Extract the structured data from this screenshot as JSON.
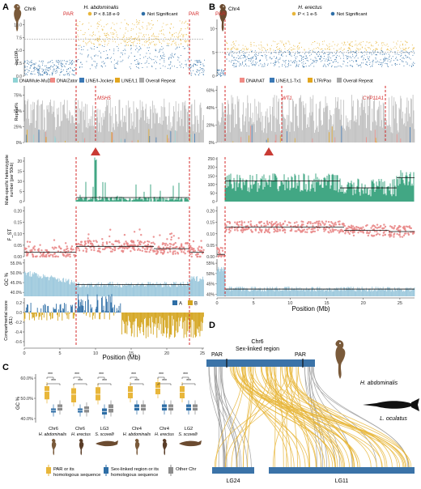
{
  "panelA": {
    "letter": "A",
    "chr": "Chr6",
    "species": "H. abdominalis",
    "legend_sig": "P < 8.18 e-9",
    "legend_ns": "Not Significant",
    "par_left": "PAR",
    "par_right": "PAR",
    "ylabel_manhattan": "-log10P",
    "ylabel_repeat": "Repeat%",
    "repeat_legend": [
      "DNA/Mule-MuDR",
      "DNA/Zator",
      "LINE/I-Jockey",
      "LINE/L1",
      "Overall Repeat"
    ],
    "gene_label": "MSH5",
    "ylabel_het_1": "Male-specific heterozygote",
    "ylabel_het_2": "number (per 50kb)",
    "ylabel_fst": "F_ST",
    "ylabel_gc": "GC %",
    "ylabel_comp_1": "Compartmental score",
    "ylabel_comp_2": "(E1)",
    "comp_legend_a": "A",
    "comp_legend_b": "B",
    "xlabel": "Position (Mb)",
    "manhattan_ticks": [
      "0.0",
      "2.5",
      "5.0",
      "7.5",
      "10.0"
    ],
    "repeat_ticks": [
      "0%",
      "25%",
      "50%",
      "75%"
    ],
    "het_ticks": [
      "0",
      "5",
      "10",
      "15",
      "20"
    ],
    "fst_ticks": [
      "0.00",
      "0.05",
      "0.10",
      "0.15",
      "0.20"
    ],
    "gc_ticks": [
      "40.0%",
      "45.0%",
      "50.0%",
      "55.0%"
    ],
    "comp_ticks": [
      "-0.6",
      "-0.4",
      "-0.2",
      "0.0",
      "0.2"
    ],
    "x_ticks": [
      "0",
      "5",
      "10",
      "15",
      "20",
      "25"
    ]
  },
  "panelB": {
    "letter": "B",
    "chr": "Chr4",
    "species": "H. erectus",
    "legend_sig": "P < 1 e-5",
    "legend_ns": "Not Significant",
    "par_label": "PAR",
    "repeat_legend": [
      "DNA/hAT",
      "LINE/L1-Tx1",
      "LTR/Pao",
      "Overall Repeat"
    ],
    "gene_labels": [
      "WT1",
      "CYP11A1"
    ],
    "manhattan_ticks": [
      "0",
      "5",
      "10"
    ],
    "repeat_ticks": [
      "0%",
      "20%",
      "40%",
      "60%"
    ],
    "het_ticks": [
      "0",
      "50",
      "100",
      "150",
      "200",
      "250"
    ],
    "fst_ticks": [
      "0.00",
      "0.05",
      "0.10",
      "0.15",
      "0.20"
    ],
    "gc_ticks": [
      "40%",
      "45%",
      "50%",
      "55%"
    ],
    "xlabel": "Position (Mb)",
    "x_ticks": [
      "0",
      "5",
      "10",
      "15",
      "20",
      "25"
    ]
  },
  "panelC": {
    "letter": "C",
    "ylabel": "GC %",
    "y_ticks": [
      "40.0%",
      "50.0%",
      "60.0%"
    ],
    "sig": "***",
    "group1": {
      "chrs": [
        "Chr6",
        "Chr6",
        "LG3"
      ]
    },
    "group2": {
      "chrs": [
        "Chr4",
        "Chr4",
        "LG2"
      ]
    },
    "species": [
      "H. abdominalis",
      "H. erectus",
      "S. scovelli"
    ],
    "legend": [
      "PAR or its homologous sequence",
      "Sex-linked region or its homologous sequence",
      "Other Chr"
    ],
    "colors": {
      "par": "#e8b63a",
      "sex": "#2e6ea6",
      "other": "#8c8c8c"
    },
    "chart_data": {
      "type": "box",
      "series": [
        {
          "name": "PAR or its homologous sequence",
          "values": [
            [
              49.5,
              53.5,
              56
            ],
            [
              48,
              52,
              55
            ],
            [
              49,
              52,
              55.5
            ],
            [
              50,
              53,
              56
            ],
            [
              52,
              55,
              58
            ],
            [
              50,
              53,
              56
            ]
          ]
        },
        {
          "name": "Sex-linked region or its homologous sequence",
          "values": [
            [
              43,
              44,
              45
            ],
            [
              43,
              44,
              45
            ],
            [
              42,
              43.5,
              45
            ],
            [
              44,
              45.5,
              47
            ],
            [
              44,
              45.5,
              47
            ],
            [
              44,
              45.5,
              47
            ]
          ]
        },
        {
          "name": "Other Chr",
          "values": [
            [
              44,
              45.5,
              47
            ],
            [
              43,
              44.5,
              46
            ],
            [
              43,
              45,
              47
            ],
            [
              44,
              45.5,
              47
            ],
            [
              44,
              45.5,
              47
            ],
            [
              44,
              45.5,
              47
            ]
          ]
        }
      ]
    }
  },
  "panelD": {
    "letter": "D",
    "region_title_1": "Chr6",
    "region_title_2": "Sex-linked region",
    "par_left": "PAR",
    "par_right": "PAR",
    "species_top": "H. abdominalis",
    "species_bottom": "L. oculatus",
    "lg_left": "LG24",
    "lg_right": "LG11",
    "colors": {
      "chrom": "#3b73a8",
      "link_par": "#9a9a9a",
      "link_sex": "#e8b63a"
    }
  },
  "colors": {
    "sig": "#e8b63a",
    "ns": "#2e6ea6",
    "par_line": "#d42a2a",
    "het": "#2e9e77",
    "fst": "#e98a8a",
    "gc": "#9cc8dc",
    "comp_a": "#2e6ea6",
    "comp_b": "#d4a51e",
    "overall": "#b3b3b3"
  }
}
